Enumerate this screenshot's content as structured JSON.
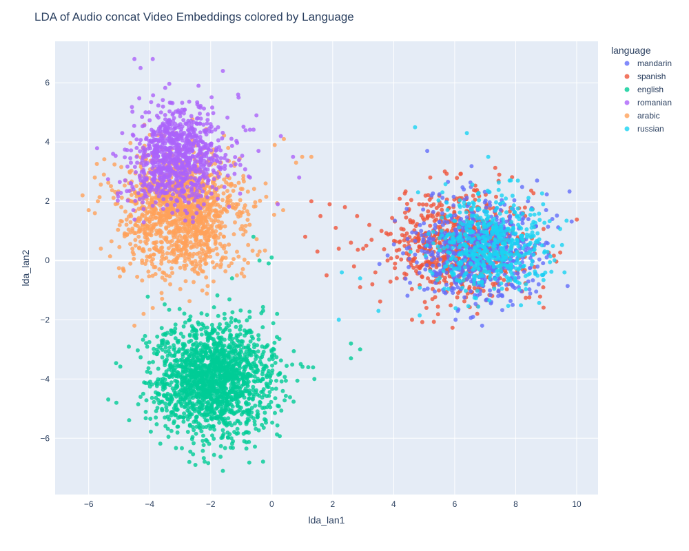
{
  "chart_data": {
    "type": "scatter",
    "title": "LDA of Audio concat Video Embeddings colored by Language",
    "xlabel": "lda_lan1",
    "ylabel": "lda_lan2",
    "xlim": [
      -7.1,
      10.7
    ],
    "ylim": [
      -7.9,
      7.4
    ],
    "xticks": [
      -6,
      -4,
      -2,
      0,
      2,
      4,
      6,
      8,
      10
    ],
    "yticks": [
      -6,
      -4,
      -2,
      0,
      2,
      4,
      6
    ],
    "grid": true,
    "legend": {
      "title": "language",
      "placement": "top-right outside"
    },
    "series": [
      {
        "name": "mandarin",
        "color": "#636efa",
        "cluster": {
          "center": [
            6.8,
            0.4
          ],
          "spread": [
            1.0,
            0.85
          ],
          "count": 600
        },
        "x": [
          5.1,
          4.7,
          8.7,
          9.2,
          6.9,
          5.9,
          7.8,
          6.3,
          8.1,
          5.5,
          7.2,
          6.6,
          9.0,
          5.3,
          7.5,
          6.1,
          8.4,
          4.9,
          5.7,
          6.6,
          7.9
        ],
        "y": [
          3.7,
          0.2,
          2.7,
          1.4,
          -2.2,
          -1.0,
          0.8,
          2.4,
          -0.9,
          1.3,
          -1.4,
          0.1,
          0.6,
          -0.5,
          1.9,
          -1.7,
          2.0,
          1.0,
          -1.1,
          -1.9,
          -1.5
        ]
      },
      {
        "name": "spanish",
        "color": "#ef553b",
        "cluster": {
          "center": [
            6.2,
            0.5
          ],
          "spread": [
            1.1,
            0.9
          ],
          "count": 700
        },
        "x": [
          1.3,
          1.6,
          1.9,
          2.4,
          2.1,
          2.8,
          3.2,
          3.6,
          2.6,
          3.0,
          3.9,
          1.1,
          1.5,
          2.2,
          2.7,
          3.4,
          4.1,
          3.8,
          1.8,
          2.9,
          3.3,
          4.6,
          5.2,
          3.1
        ],
        "y": [
          2.0,
          1.5,
          1.9,
          1.8,
          1.1,
          1.5,
          1.2,
          1.0,
          0.6,
          0.4,
          0.9,
          0.8,
          0.3,
          0.4,
          -0.2,
          -0.4,
          -0.6,
          0.0,
          -0.5,
          -0.9,
          -0.8,
          -2.0,
          2.8,
          0.5
        ]
      },
      {
        "name": "english",
        "color": "#00cc96",
        "cluster": {
          "center": [
            -1.9,
            -4.0
          ],
          "spread": [
            0.95,
            0.95
          ],
          "count": 1700
        },
        "x": [
          -0.6,
          -0.1,
          0.0,
          -0.4,
          -1.3,
          1.2,
          1.4,
          2.6,
          2.9,
          2.6,
          -4.3,
          -2.5,
          -1.6,
          -3.8,
          -0.9,
          -2.7
        ],
        "y": [
          0.8,
          -0.1,
          0.1,
          0.0,
          -0.6,
          -3.6,
          -4.0,
          -2.8,
          -3.0,
          -3.3,
          -4.6,
          -6.9,
          -7.1,
          -5.3,
          -6.1,
          -6.8
        ]
      },
      {
        "name": "romanian",
        "color": "#ab63fa",
        "cluster": {
          "center": [
            -3.1,
            3.5
          ],
          "spread": [
            0.8,
            0.8
          ],
          "count": 900
        },
        "x": [
          -4.5,
          -3.9,
          -4.3,
          -1.6,
          -2.4,
          -0.5,
          0.3,
          0.7,
          0.9,
          -4.9,
          -5.2,
          -1.1,
          0.2
        ],
        "y": [
          6.8,
          6.8,
          6.5,
          6.4,
          5.9,
          4.9,
          4.2,
          3.5,
          2.8,
          4.3,
          3.6,
          5.6,
          1.9
        ]
      },
      {
        "name": "arabic",
        "color": "#ffa15a",
        "cluster": {
          "center": [
            -3.0,
            1.6
          ],
          "spread": [
            1.0,
            1.0
          ],
          "count": 1300
        },
        "x": [
          -6.2,
          -6.0,
          -5.8,
          -5.5,
          -5.6,
          -5.7,
          0.4,
          0.1,
          0.8,
          1.0,
          1.3,
          -4.5,
          -3.9,
          -4.2,
          -0.2
        ],
        "y": [
          2.2,
          1.7,
          2.8,
          2.9,
          0.4,
          2.0,
          4.1,
          3.9,
          3.3,
          3.5,
          3.5,
          -2.2,
          -1.6,
          -1.8,
          2.6
        ]
      },
      {
        "name": "russian",
        "color": "#19d3f3",
        "cluster": {
          "center": [
            7.2,
            0.5
          ],
          "spread": [
            0.9,
            0.8
          ],
          "count": 550
        },
        "x": [
          4.7,
          6.4,
          7.1,
          2.2,
          2.3,
          2.9,
          3.5,
          9.6,
          8.9,
          4.8,
          7.8
        ],
        "y": [
          4.5,
          4.3,
          3.5,
          -2.0,
          -0.4,
          -0.6,
          -1.7,
          -0.4,
          1.9,
          2.3,
          2.7
        ]
      }
    ]
  }
}
